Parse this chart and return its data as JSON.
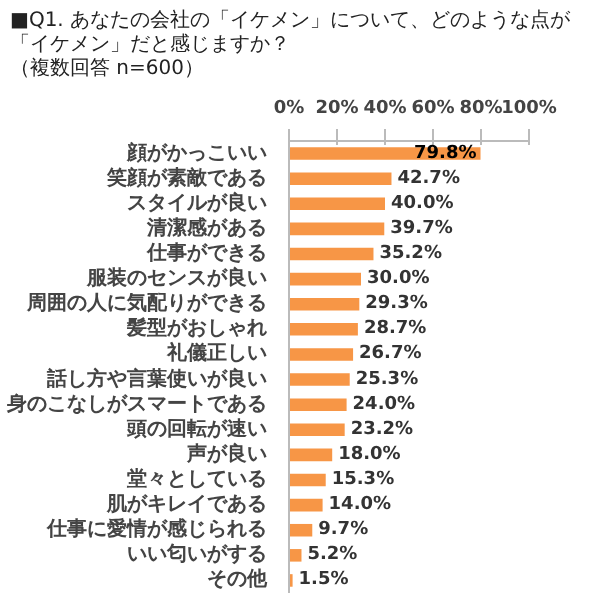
{
  "chart_data": {
    "type": "bar",
    "orientation": "horizontal",
    "title": "■Q1. あなたの会社の「イケメン」について、どのような点が「イケメン」だと感じますか？",
    "subtitle": "（複数回答 n=600）",
    "categories": [
      "顔がかっこいい",
      "笑顔が素敵である",
      "スタイルが良い",
      "清潔感がある",
      "仕事ができる",
      "服装のセンスが良い",
      "周囲の人に気配りができる",
      "髪型がおしゃれ",
      "礼儀正しい",
      "話し方や言葉使いが良い",
      "身のこなしがスマートである",
      "頭の回転が速い",
      "声が良い",
      "堂々としている",
      "肌がキレイである",
      "仕事に愛情が感じられる",
      "いい匂いがする",
      "その他"
    ],
    "values": [
      79.8,
      42.7,
      40.0,
      39.7,
      35.2,
      30.0,
      29.3,
      28.7,
      26.7,
      25.3,
      24.0,
      23.2,
      18.0,
      15.3,
      14.0,
      9.7,
      5.2,
      1.5
    ],
    "value_labels": [
      "79.8%",
      "42.7%",
      "40.0%",
      "39.7%",
      "35.2%",
      "30.0%",
      "29.3%",
      "28.7%",
      "26.7%",
      "25.3%",
      "24.0%",
      "23.2%",
      "18.0%",
      "15.3%",
      "14.0%",
      "9.7%",
      "5.2%",
      "1.5%"
    ],
    "color": "#f79646",
    "xlim": [
      0,
      100
    ],
    "xticks": [
      {
        "value": 0,
        "label": "0%"
      },
      {
        "value": 20,
        "label": "20%"
      },
      {
        "value": 40,
        "label": "40%"
      },
      {
        "value": 60,
        "label": "60%"
      },
      {
        "value": 80,
        "label": "80%"
      },
      {
        "value": 100,
        "label": "100%"
      }
    ],
    "grid": false
  }
}
